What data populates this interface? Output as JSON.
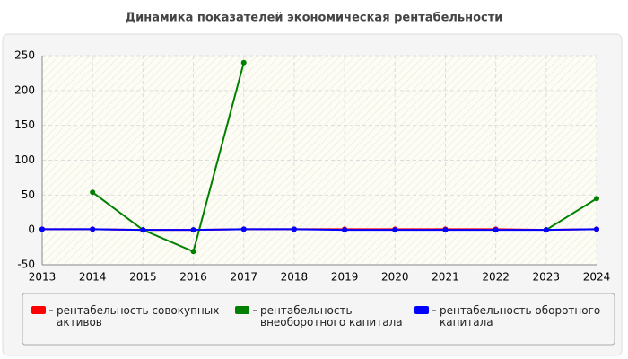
{
  "chart_data": {
    "type": "line",
    "title": "Динамика показателей экономическая рентабельности",
    "x": [
      2013,
      2014,
      2015,
      2016,
      2017,
      2018,
      2019,
      2020,
      2021,
      2022,
      2023,
      2024
    ],
    "series": [
      {
        "name": "рентабельность совокупных активов",
        "color": "#ff0000",
        "values": [
          1,
          1,
          0,
          0,
          1,
          1,
          1,
          1,
          1,
          1,
          0,
          1
        ]
      },
      {
        "name": "рентабельность внеоборотного капитала",
        "color": "#008000",
        "values": [
          null,
          54,
          0,
          -31,
          240,
          null,
          null,
          null,
          null,
          null,
          0,
          45
        ]
      },
      {
        "name": "рентабельность оборотного капитала",
        "color": "#0000ff",
        "values": [
          1,
          1,
          0,
          0,
          1,
          1,
          0,
          0,
          0,
          0,
          0,
          1
        ]
      }
    ],
    "xlim": [
      2013,
      2024
    ],
    "xticks": [
      2013,
      2014,
      2015,
      2016,
      2017,
      2018,
      2019,
      2020,
      2021,
      2022,
      2023,
      2024
    ],
    "ylim": [
      -50,
      250
    ],
    "yticks": [
      -50,
      0,
      50,
      100,
      150,
      200,
      250
    ],
    "grid": true
  }
}
